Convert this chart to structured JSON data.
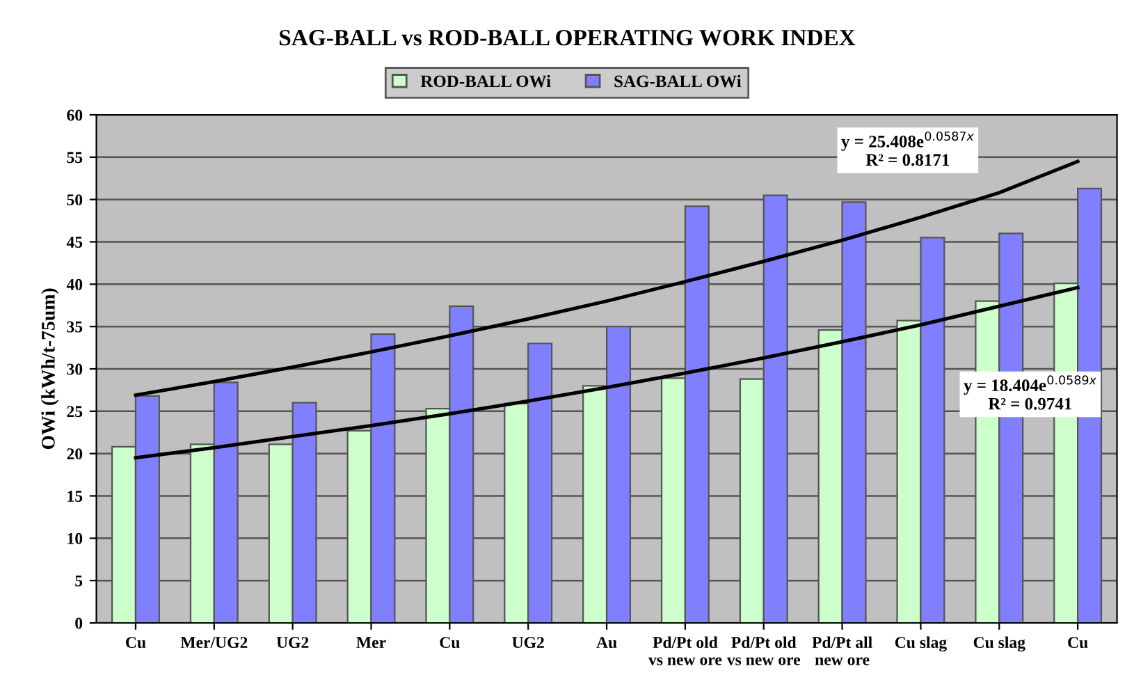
{
  "chart_data": {
    "type": "bar",
    "title": "SAG-BALL vs ROD-BALL OPERATING WORK INDEX",
    "ylabel": "OWi (kWh/t-75um)",
    "categories": [
      "Cu",
      "Mer/UG2",
      "UG2",
      "Mer",
      "Cu",
      "UG2",
      "Au",
      "Pd/Pt old\nvs new ore",
      "Pd/Pt old\nvs new ore",
      "Pd/Pt all\nnew ore",
      "Cu slag",
      "Cu slag",
      "Cu"
    ],
    "series": [
      {
        "name": "ROD-BALL OWi",
        "color": "#ccffcc",
        "values": [
          20.8,
          21.1,
          21.1,
          22.7,
          25.3,
          25.9,
          28.0,
          28.9,
          28.8,
          34.6,
          35.7,
          38.0,
          40.1
        ]
      },
      {
        "name": "SAG-BALL OWi",
        "color": "#8080ff",
        "values": [
          26.8,
          28.4,
          26.0,
          34.1,
          37.4,
          33.0,
          35.0,
          49.2,
          50.5,
          49.7,
          45.5,
          46.0,
          51.3
        ]
      },
      {
        "type": "line",
        "color": "#000000",
        "values": [
          26.9,
          28.5,
          30.2,
          32.0,
          33.9,
          35.9,
          38.0,
          40.3,
          42.7,
          45.2,
          47.9,
          50.8,
          54.5
        ]
      },
      {
        "type": "line",
        "color": "#000000",
        "values": [
          19.5,
          20.7,
          22.0,
          23.3,
          24.7,
          26.2,
          27.8,
          29.5,
          31.3,
          33.2,
          35.2,
          37.4,
          39.6
        ]
      }
    ],
    "annotations": [
      "y = 25.408e$^{0.0587x}$\nR² = 0.8171",
      "y = 18.404e$^{0.0589x}$\nR² = 0.9741"
    ],
    "ylim": [
      0,
      60
    ],
    "yticks": [
      0,
      5,
      10,
      15,
      20,
      25,
      30,
      35,
      40,
      45,
      50,
      55,
      60
    ],
    "grid": "y",
    "legend": "top"
  }
}
